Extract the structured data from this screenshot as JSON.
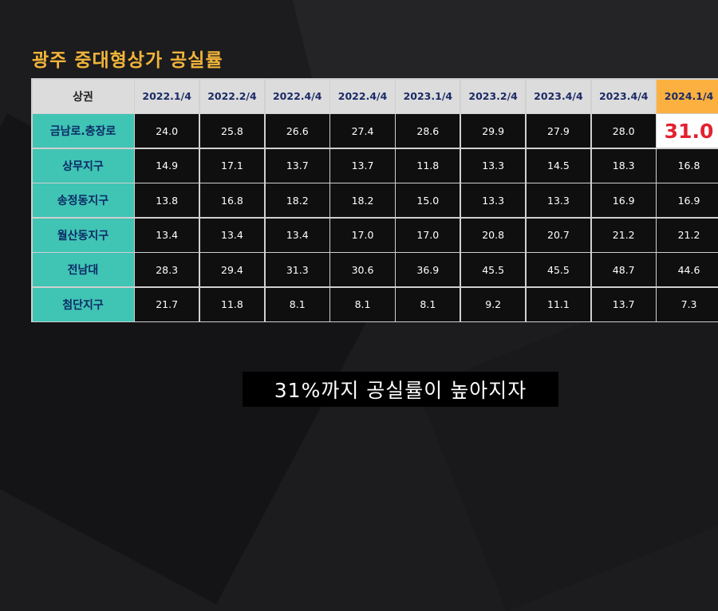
{
  "title": "광주 중대형상가 공실률",
  "table": {
    "corner": "상권",
    "columns": [
      "2022.1/4",
      "2022.2/4",
      "2022.4/4",
      "2022.4/4",
      "2023.1/4",
      "2023.2/4",
      "2023.4/4",
      "2023.4/4",
      "2024.1/4"
    ],
    "rows": [
      {
        "label": "금남로.충장로",
        "values": [
          "24.0",
          "25.8",
          "26.6",
          "27.4",
          "28.6",
          "29.9",
          "27.9",
          "28.0",
          "31.0"
        ]
      },
      {
        "label": "상무지구",
        "values": [
          "14.9",
          "17.1",
          "13.7",
          "13.7",
          "11.8",
          "13.3",
          "14.5",
          "18.3",
          "16.8"
        ]
      },
      {
        "label": "송정동지구",
        "values": [
          "13.8",
          "16.8",
          "18.2",
          "18.2",
          "15.0",
          "13.3",
          "13.3",
          "16.9",
          "16.9"
        ]
      },
      {
        "label": "월산동지구",
        "values": [
          "13.4",
          "13.4",
          "13.4",
          "17.0",
          "17.0",
          "20.8",
          "20.7",
          "21.2",
          "21.2"
        ]
      },
      {
        "label": "전남대",
        "values": [
          "28.3",
          "29.4",
          "31.3",
          "30.6",
          "36.9",
          "45.5",
          "45.5",
          "48.7",
          "44.6"
        ]
      },
      {
        "label": "첨단지구",
        "values": [
          "21.7",
          "11.8",
          "8.1",
          "8.1",
          "8.1",
          "9.2",
          "11.1",
          "13.7",
          "7.3"
        ]
      }
    ]
  },
  "subtitle": "31%까지 공실률이 높아지자",
  "colors": {
    "title": "#f2b53a",
    "row_label_bg": "#40c4b4",
    "highlight_header_bg": "#fbb040",
    "highlight_value": "#e2222f"
  }
}
